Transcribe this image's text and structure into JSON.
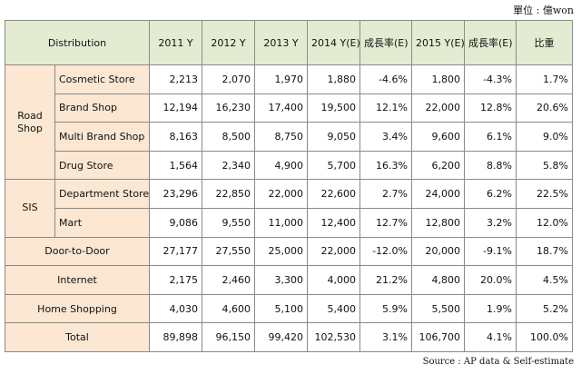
{
  "unit": "單位 : 億won",
  "source": "Source : AP data & Self-estimate",
  "headers": {
    "distribution": "Distribution",
    "years": [
      "2011 Y",
      "2012 Y",
      "2013 Y",
      "2014 Y(E)",
      "成長率(E)",
      "2015 Y(E)",
      "成長率(E)",
      "比重"
    ]
  },
  "groups": {
    "road_shop": "Road Shop",
    "sis": "SIS"
  },
  "rows": [
    {
      "label": "Cosmetic Store",
      "values": [
        "2,213",
        "2,070",
        "1,970",
        "1,880",
        "-4.6%",
        "1,800",
        "-4.3%",
        "1.7%"
      ]
    },
    {
      "label": "Brand Shop",
      "values": [
        "12,194",
        "16,230",
        "17,400",
        "19,500",
        "12.1%",
        "22,000",
        "12.8%",
        "20.6%"
      ]
    },
    {
      "label": "Multi Brand Shop",
      "values": [
        "8,163",
        "8,500",
        "8,750",
        "9,050",
        "3.4%",
        "9,600",
        "6.1%",
        "9.0%"
      ]
    },
    {
      "label": "Drug Store",
      "values": [
        "1,564",
        "2,340",
        "4,900",
        "5,700",
        "16.3%",
        "6,200",
        "8.8%",
        "5.8%"
      ]
    },
    {
      "label": "Department Store",
      "values": [
        "23,296",
        "22,850",
        "22,000",
        "22,600",
        "2.7%",
        "24,000",
        "6.2%",
        "22.5%"
      ]
    },
    {
      "label": "Mart",
      "values": [
        "9,086",
        "9,550",
        "11,000",
        "12,400",
        "12.7%",
        "12,800",
        "3.2%",
        "12.0%"
      ]
    },
    {
      "label": "Door-to-Door",
      "values": [
        "27,177",
        "27,550",
        "25,000",
        "22,000",
        "-12.0%",
        "20,000",
        "-9.1%",
        "18.7%"
      ]
    },
    {
      "label": "Internet",
      "values": [
        "2,175",
        "2,460",
        "3,300",
        "4,000",
        "21.2%",
        "4,800",
        "20.0%",
        "4.5%"
      ]
    },
    {
      "label": "Home Shopping",
      "values": [
        "4,030",
        "4,600",
        "5,100",
        "5,400",
        "5.9%",
        "5,500",
        "1.9%",
        "5.2%"
      ]
    },
    {
      "label": "Total",
      "values": [
        "89,898",
        "96,150",
        "99,420",
        "102,530",
        "3.1%",
        "106,700",
        "4.1%",
        "100.0%"
      ]
    }
  ]
}
